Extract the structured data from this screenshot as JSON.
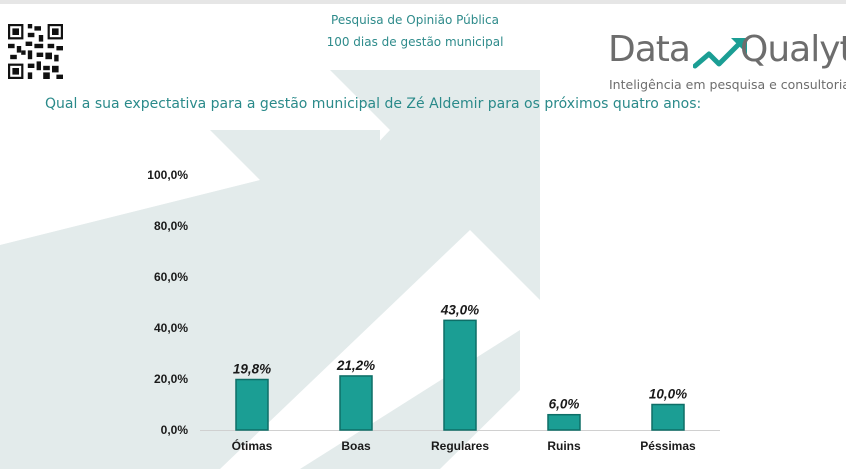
{
  "header": {
    "survey_line1": "Pesquisa de Opinião Pública",
    "survey_line2": "100 dias de gestão municipal"
  },
  "logo": {
    "word1": "Data",
    "word2": "Qualyt",
    "tagline": "Inteligência em pesquisa e consultoria"
  },
  "question": "Qual a sua expectativa para a gestão municipal de Zé Aldemir para os próximos quatro anos:",
  "colors": {
    "bar": "#1b9e94",
    "bar_edge": "#0e6e67",
    "title_text": "#2e8b8b",
    "logo_gray": "#6d6d6d",
    "logo_arrow": "#1b9e94",
    "watermark": "#e3ebeb"
  },
  "chart_data": {
    "type": "bar",
    "title": "",
    "xlabel": "",
    "ylabel": "",
    "categories": [
      "Ótimas",
      "Boas",
      "Regulares",
      "Ruins",
      "Péssimas"
    ],
    "values": [
      19.8,
      21.2,
      43.0,
      6.0,
      10.0
    ],
    "data_labels": [
      "19,8%",
      "21,2%",
      "43,0%",
      "6,0%",
      "10,0%"
    ],
    "ylim": [
      0,
      100
    ],
    "y_ticks": [
      0,
      20,
      40,
      60,
      80,
      100
    ],
    "y_tick_labels": [
      "0,0%",
      "20,0%",
      "40,0%",
      "60,0%",
      "80,0%",
      "100,0%"
    ],
    "grid": false,
    "legend": "none"
  }
}
